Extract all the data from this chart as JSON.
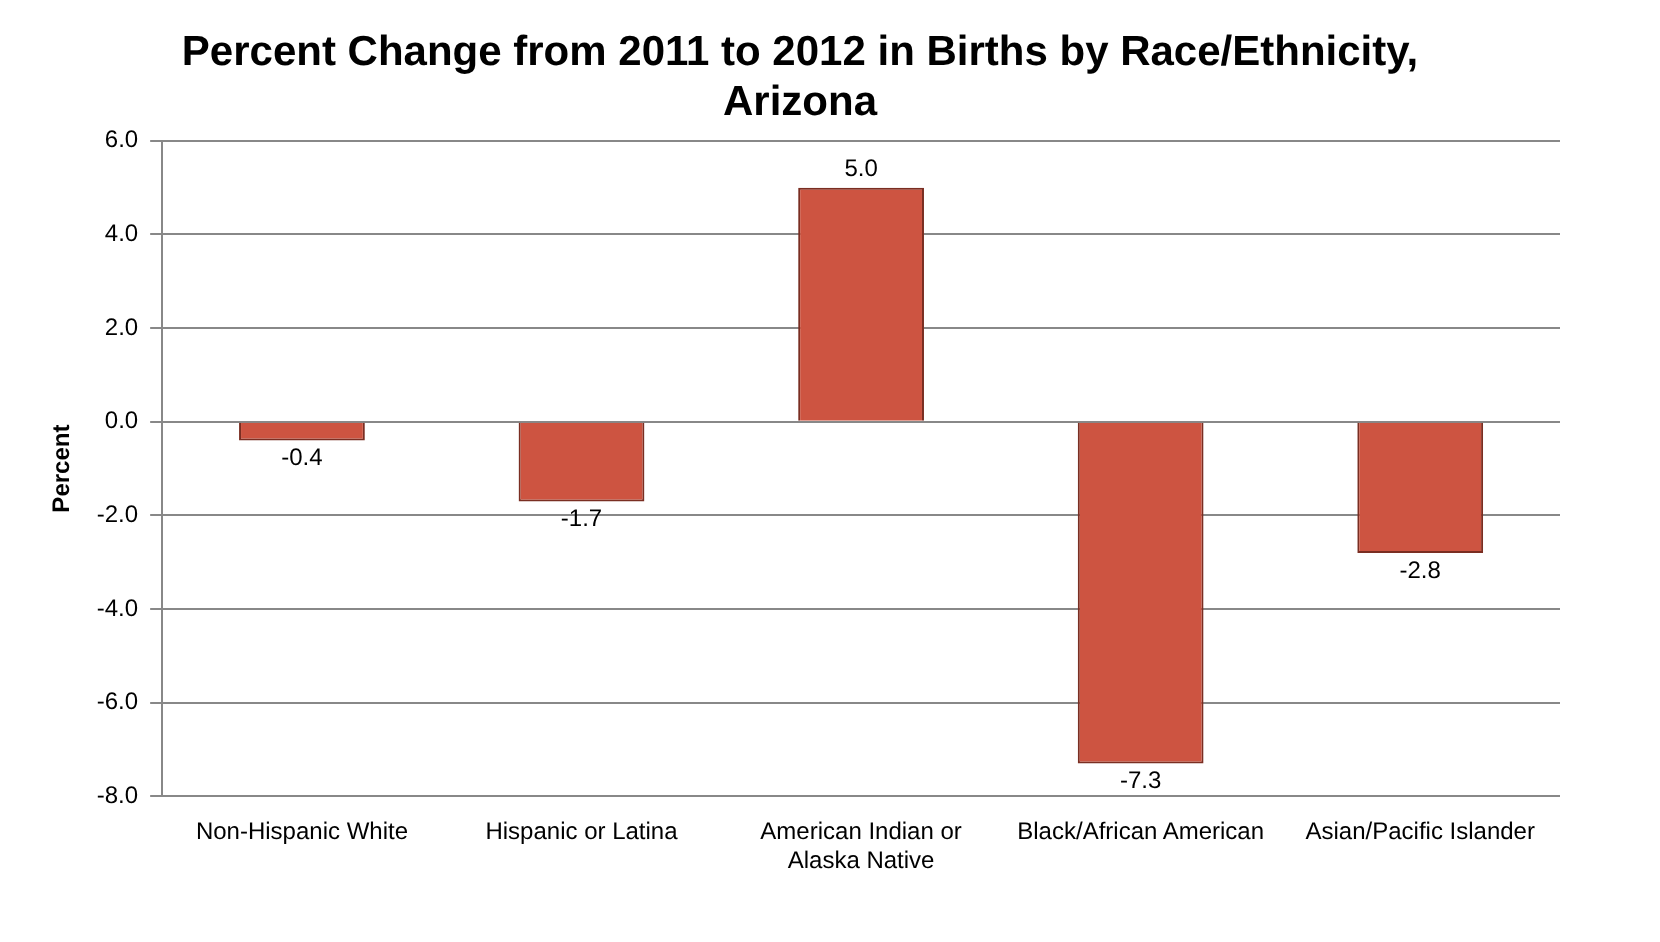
{
  "chart_data": {
    "type": "bar",
    "title": "Percent Change from 2011 to 2012 in Births by Race/Ethnicity, Arizona",
    "ylabel": "Percent",
    "categories": [
      "Non-Hispanic White",
      "Hispanic or Latina",
      "American Indian or Alaska Native",
      "Black/African American",
      "Asian/Pacific Islander"
    ],
    "values": [
      -0.4,
      -1.7,
      5.0,
      -7.3,
      -2.8
    ],
    "value_labels": [
      "-0.4",
      "-1.7",
      "5.0",
      "-7.3",
      "-2.8"
    ],
    "color": "#cd5441",
    "ylim": [
      -8,
      6
    ],
    "yticks": [
      {
        "value": -8,
        "label": "-8.0"
      },
      {
        "value": -6,
        "label": "-6.0"
      },
      {
        "value": -4,
        "label": "-4.0"
      },
      {
        "value": -2,
        "label": "-2.0"
      },
      {
        "value": 0,
        "label": "0.0"
      },
      {
        "value": 2,
        "label": "2.0"
      },
      {
        "value": 4,
        "label": "4.0"
      },
      {
        "value": 6,
        "label": "6.0"
      }
    ],
    "grid": "y",
    "legend": false
  }
}
